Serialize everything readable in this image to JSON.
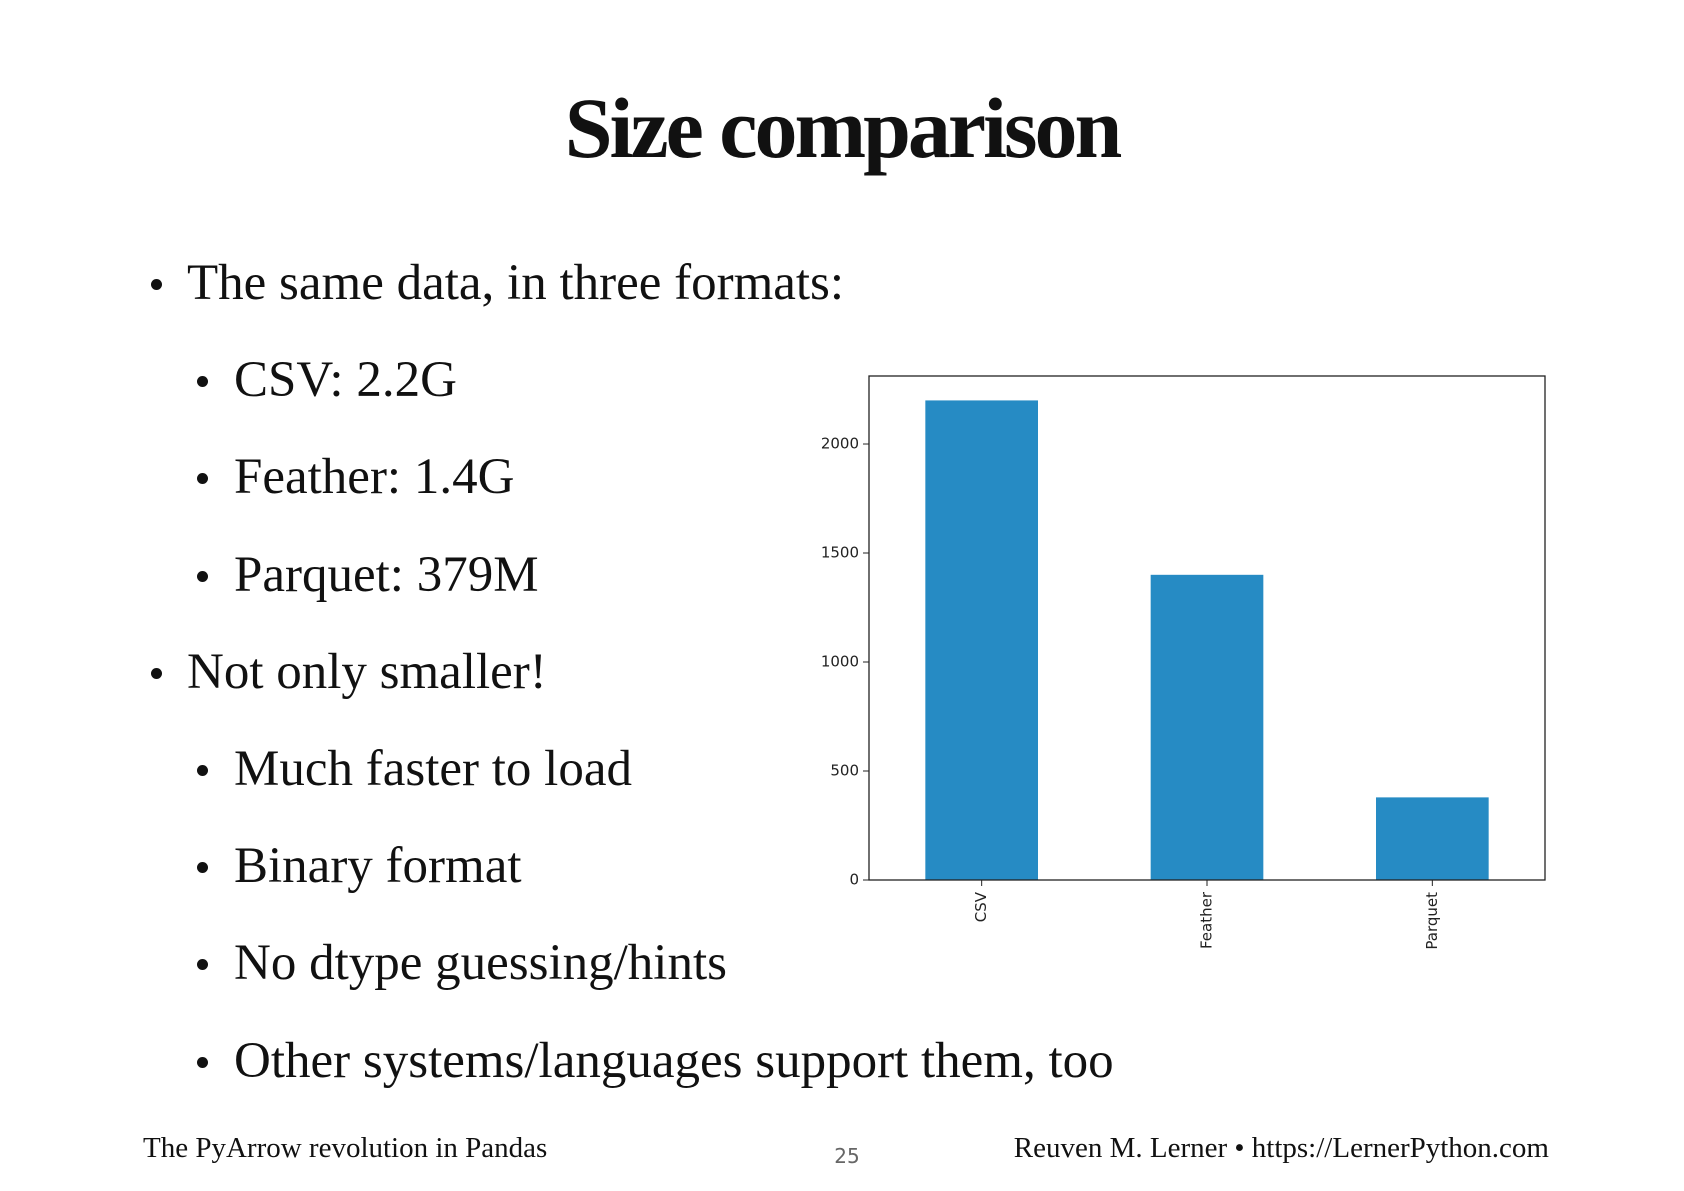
{
  "title": "Size comparison",
  "bullets": [
    {
      "text": "The same data, in three formats:",
      "children": [
        "CSV: 2.2G",
        "Feather: 1.4G",
        "Parquet: 379M"
      ]
    },
    {
      "text": "Not only smaller!",
      "children": [
        "Much faster to load",
        "Binary format",
        "No dtype guessing/hints",
        "Other systems/languages support them, too"
      ]
    }
  ],
  "footer": {
    "left": "The PyArrow revolution in Pandas",
    "page": "25",
    "right": "Reuven M. Lerner • https://LernerPython.com"
  },
  "chart_data": {
    "type": "bar",
    "categories": [
      "CSV",
      "Feather",
      "Parquet"
    ],
    "values": [
      2200,
      1400,
      379
    ],
    "color": "#268bc4",
    "ylim": [
      0,
      2312
    ],
    "yticks": [
      0,
      500,
      1000,
      1500,
      2000
    ]
  }
}
